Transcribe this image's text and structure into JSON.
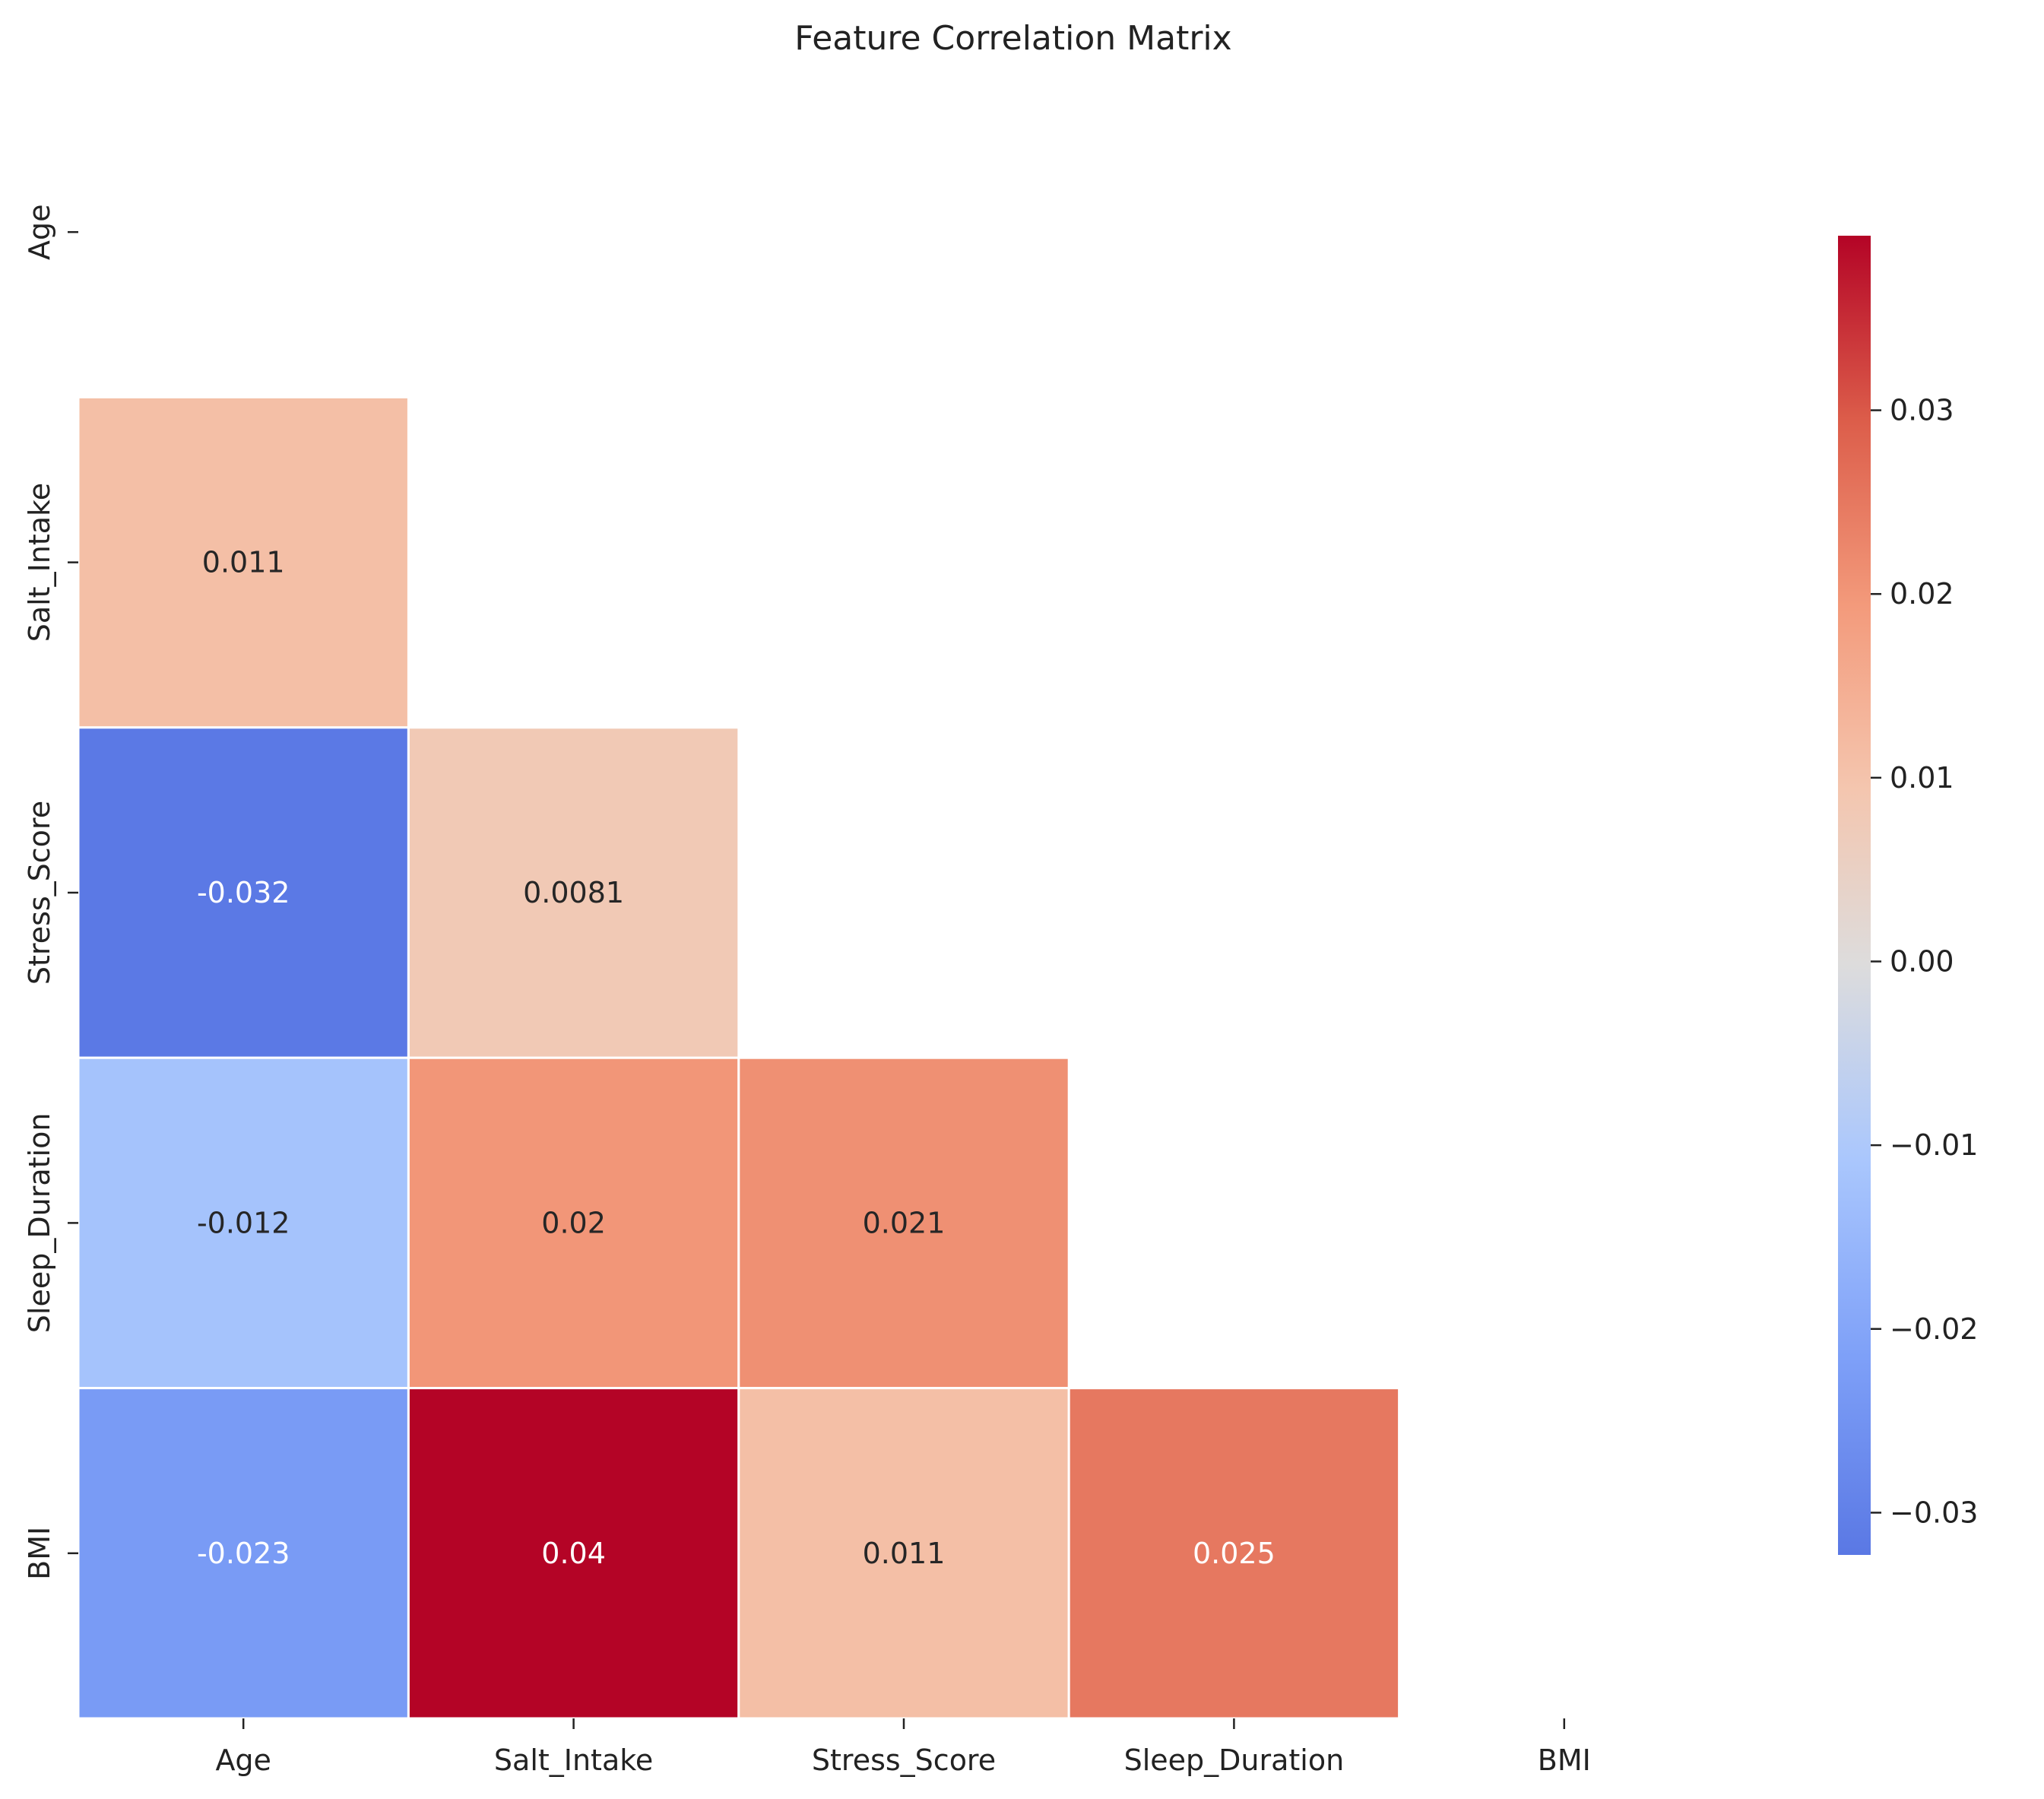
{
  "chart_data": {
    "type": "heatmap",
    "title": "Feature Correlation Matrix",
    "labels": [
      "Age",
      "Salt_Intake",
      "Stress_Score",
      "Sleep_Duration",
      "BMI"
    ],
    "mask": "upper-triangle-including-diagonal",
    "colormap": "coolwarm",
    "values": [
      [
        null,
        null,
        null,
        null,
        null
      ],
      [
        0.011,
        null,
        null,
        null,
        null
      ],
      [
        -0.032,
        0.0081,
        null,
        null,
        null
      ],
      [
        -0.012,
        0.02,
        0.021,
        null,
        null
      ],
      [
        -0.023,
        0.04,
        0.011,
        0.025,
        null
      ]
    ],
    "value_labels": [
      [
        "",
        "",
        "",
        "",
        ""
      ],
      [
        "0.011",
        "",
        "",
        "",
        ""
      ],
      [
        "-0.032",
        "0.0081",
        "",
        "",
        ""
      ],
      [
        "-0.012",
        "0.02",
        "0.021",
        "",
        ""
      ],
      [
        "-0.023",
        "0.04",
        "0.011",
        "0.025",
        ""
      ]
    ],
    "colorbar": {
      "range": [
        -0.0323,
        0.0395
      ],
      "ticks": [
        0.03,
        0.02,
        0.01,
        0.0,
        -0.01,
        -0.02,
        -0.03
      ],
      "tick_labels": [
        "0.03",
        "0.02",
        "0.01",
        "0.00",
        "−0.01",
        "−0.02",
        "−0.03"
      ]
    }
  }
}
